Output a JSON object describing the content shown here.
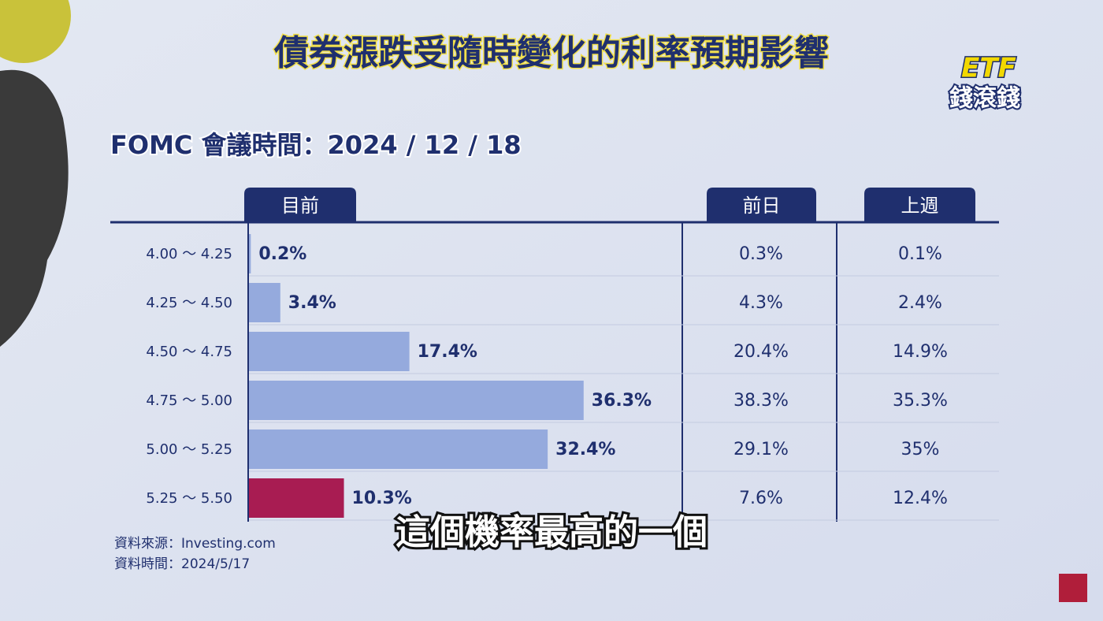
{
  "chart_data": {
    "type": "bar",
    "title": "債券漲跌受隨時變化的利率預期影響",
    "subtitle": "FOMC 會議時間：2024 / 12 / 18",
    "categories": [
      "4.00 ～ 4.25",
      "4.25 ～ 4.50",
      "4.50 ～ 4.75",
      "4.75 ～ 5.00",
      "5.00 ～ 5.25",
      "5.25 ～ 5.50"
    ],
    "series": [
      {
        "name": "目前",
        "values": [
          0.2,
          3.4,
          17.4,
          36.3,
          32.4,
          10.3
        ],
        "value_labels": [
          "0.2%",
          "3.4%",
          "17.4%",
          "36.3%",
          "32.4%",
          "10.3%"
        ],
        "colors": [
          "#95aadd",
          "#95aadd",
          "#95aadd",
          "#95aadd",
          "#95aadd",
          "#a81c52"
        ]
      },
      {
        "name": "前日",
        "values": [
          0.3,
          4.3,
          20.4,
          38.3,
          29.1,
          7.6
        ],
        "value_labels": [
          "0.3%",
          "4.3%",
          "20.4%",
          "38.3%",
          "29.1%",
          "7.6%"
        ]
      },
      {
        "name": "上週",
        "values": [
          0.1,
          2.4,
          14.9,
          35.3,
          35,
          12.4
        ],
        "value_labels": [
          "0.1%",
          "2.4%",
          "14.9%",
          "35.3%",
          "35%",
          "12.4%"
        ]
      }
    ],
    "xlim": [
      0,
      47
    ],
    "sources": [
      "資料來源：Investing.com",
      "資料時間：2024/5/17"
    ],
    "caption": "這個機率最高的一個",
    "logo": [
      "ETF",
      "錢滾錢"
    ]
  }
}
